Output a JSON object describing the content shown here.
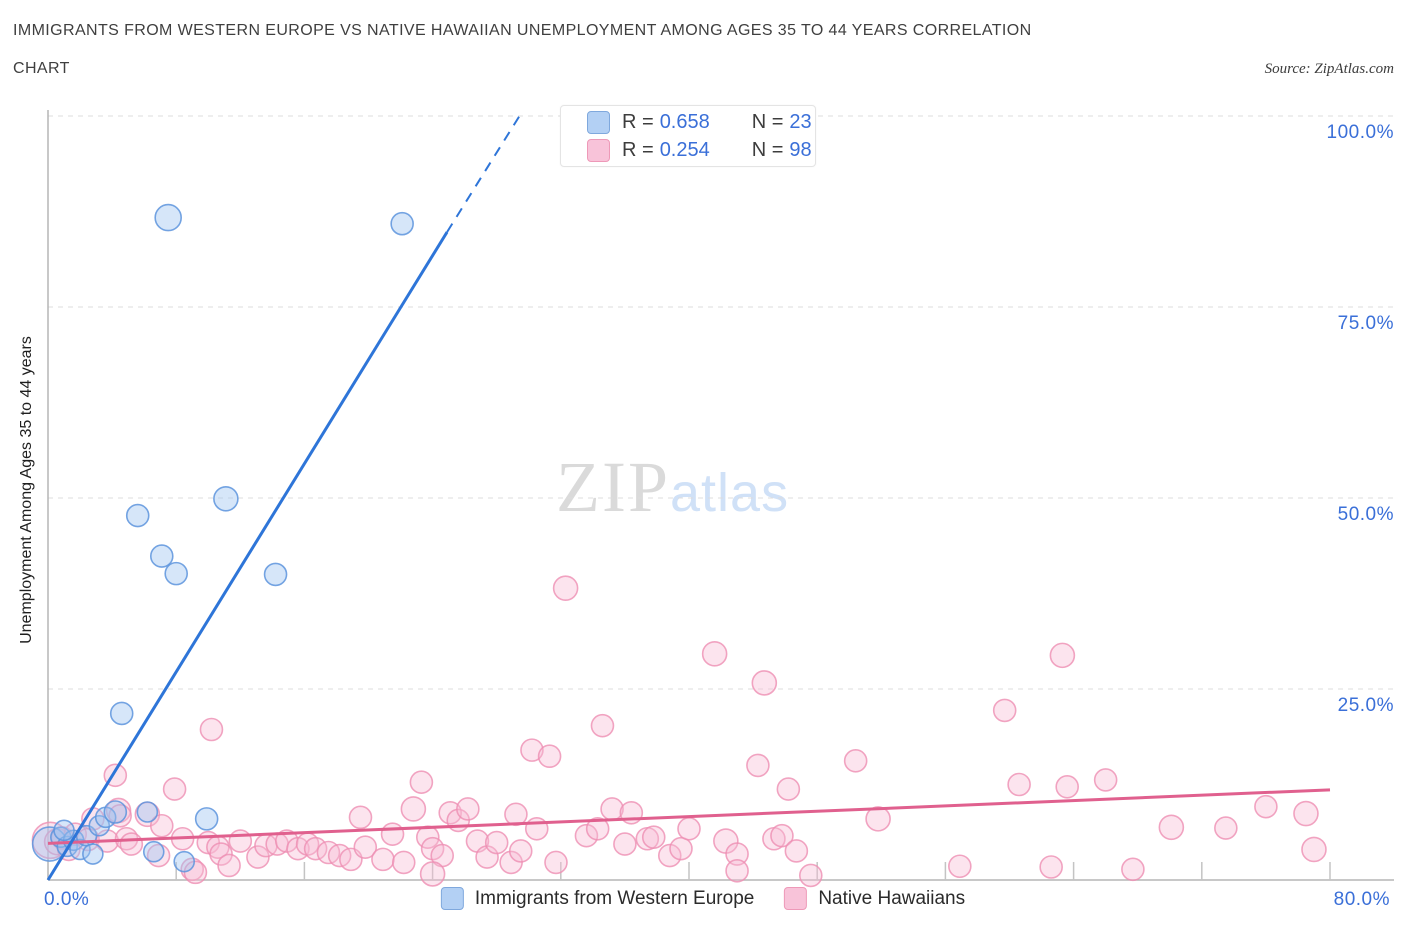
{
  "header": {
    "title_line1": "IMMIGRANTS FROM WESTERN EUROPE VS NATIVE HAWAIIAN UNEMPLOYMENT AMONG AGES 35 TO 44 YEARS CORRELATION",
    "title_line2": "CHART",
    "source": "Source: ZipAtlas.com"
  },
  "watermark": {
    "part1": "ZIP",
    "part2": "atlas"
  },
  "stats_box": {
    "rows": [
      {
        "r_label": "R =",
        "r_value": "0.658",
        "n_label": "N =",
        "n_value": "23"
      },
      {
        "r_label": "R =",
        "r_value": "0.254",
        "n_label": "N =",
        "n_value": "98"
      }
    ]
  },
  "axes": {
    "ylabel": "Unemployment Among Ages 35 to 44 years",
    "y_tick_labels": [
      "100.0%",
      "75.0%",
      "50.0%",
      "25.0%"
    ],
    "x_tick_labels": [
      "0.0%",
      "80.0%"
    ]
  },
  "legend": {
    "items": [
      {
        "label": "Immigrants from Western Europe",
        "color": "#b3d0f4"
      },
      {
        "label": "Native Hawaiians",
        "color": "#f8c3d9"
      }
    ]
  },
  "colors": {
    "accent_blue": "#3a6fd8",
    "blue_point_fill": "#9ec3f1",
    "blue_point_stroke": "#5d94dd",
    "blue_trend": "#2e75d8",
    "pink_point_fill": "#f7bcd4",
    "pink_point_stroke": "#ee8fb3",
    "pink_trend": "#e0608e"
  },
  "chart_data": {
    "type": "scatter",
    "title": "Immigrants from Western Europe vs Native Hawaiian Unemployment Among Ages 35 to 44 years Correlation",
    "xlabel": "Immigrants from Western Europe (%)",
    "ylabel": "Unemployment Among Ages 35 to 44 years (%)",
    "xlim": [
      0,
      80
    ],
    "ylim": [
      0,
      100
    ],
    "grid": "horizontal dashed at 25/50/75/100",
    "legend_position": "bottom-center",
    "x_ticks_pct": [
      8,
      16,
      24,
      32,
      40,
      48,
      56,
      64,
      72,
      80
    ],
    "y_grid_pct": [
      25,
      50,
      75,
      100
    ],
    "series": [
      {
        "name": "Immigrants from Western Europe",
        "R": 0.658,
        "N": 23,
        "trend": {
          "solid": [
            [
              0,
              0
            ],
            [
              24.9,
              84.8
            ]
          ],
          "dashed": [
            [
              24.9,
              84.8
            ],
            [
              29.6,
              100.6
            ]
          ]
        },
        "points": [
          [
            0.1,
            4.7,
            17
          ],
          [
            0.8,
            5.6,
            10
          ],
          [
            1.2,
            4.4,
            10
          ],
          [
            1.6,
            5.2,
            10
          ],
          [
            2.0,
            4.0,
            10
          ],
          [
            2.4,
            5.8,
            10
          ],
          [
            2.8,
            3.4,
            10
          ],
          [
            1.0,
            6.5,
            10
          ],
          [
            3.2,
            7.1,
            10
          ],
          [
            3.6,
            8.2,
            10
          ],
          [
            4.2,
            8.9,
            11
          ],
          [
            4.6,
            21.8,
            11
          ],
          [
            5.6,
            47.7,
            11
          ],
          [
            6.2,
            8.9,
            10
          ],
          [
            6.6,
            3.7,
            10
          ],
          [
            7.1,
            42.4,
            11
          ],
          [
            7.5,
            86.7,
            13
          ],
          [
            8.0,
            40.1,
            11
          ],
          [
            8.5,
            2.4,
            10
          ],
          [
            9.9,
            8.0,
            11
          ],
          [
            11.1,
            49.9,
            12
          ],
          [
            14.2,
            40.0,
            11
          ],
          [
            22.1,
            85.9,
            11
          ]
        ]
      },
      {
        "name": "Native Hawaiians",
        "R": 0.254,
        "N": 98,
        "trend": {
          "solid": [
            [
              0,
              4.8
            ],
            [
              80,
              11.8
            ]
          ]
        },
        "points": [
          [
            0.15,
            5.2,
            18
          ],
          [
            0.6,
            5.0,
            13
          ],
          [
            0.9,
            5.5,
            11
          ],
          [
            1.3,
            4.0,
            11
          ],
          [
            1.7,
            6.0,
            11
          ],
          [
            56.9,
            1.8,
            11
          ],
          [
            2.5,
            5.3,
            11
          ],
          [
            2.8,
            8.0,
            11
          ],
          [
            3.7,
            5.1,
            11
          ],
          [
            4.2,
            13.7,
            11
          ],
          [
            4.4,
            9.1,
            12
          ],
          [
            4.5,
            8.4,
            11
          ],
          [
            4.9,
            5.4,
            11
          ],
          [
            5.2,
            4.7,
            11
          ],
          [
            6.2,
            8.6,
            12
          ],
          [
            6.9,
            3.2,
            11
          ],
          [
            7.1,
            7.1,
            11
          ],
          [
            7.9,
            11.9,
            11
          ],
          [
            8.4,
            5.4,
            11
          ],
          [
            9.0,
            1.4,
            11
          ],
          [
            9.2,
            1.0,
            11
          ],
          [
            10.0,
            4.9,
            11
          ],
          [
            10.2,
            19.7,
            11
          ],
          [
            10.6,
            4.3,
            11
          ],
          [
            10.8,
            3.4,
            11
          ],
          [
            11.3,
            1.9,
            11
          ],
          [
            12.0,
            5.1,
            11
          ],
          [
            13.1,
            3.0,
            11
          ],
          [
            13.6,
            4.5,
            11
          ],
          [
            14.3,
            4.7,
            11
          ],
          [
            14.9,
            5.1,
            11
          ],
          [
            15.6,
            4.1,
            11
          ],
          [
            16.2,
            4.7,
            11
          ],
          [
            16.7,
            4.1,
            11
          ],
          [
            17.5,
            3.6,
            11
          ],
          [
            18.2,
            3.2,
            11
          ],
          [
            18.9,
            2.7,
            11
          ],
          [
            19.5,
            8.2,
            11
          ],
          [
            19.8,
            4.3,
            11
          ],
          [
            20.9,
            2.7,
            11
          ],
          [
            21.5,
            6.0,
            11
          ],
          [
            22.2,
            2.3,
            11
          ],
          [
            22.8,
            9.3,
            12
          ],
          [
            23.3,
            12.8,
            11
          ],
          [
            23.7,
            5.6,
            11
          ],
          [
            24.0,
            4.1,
            11
          ],
          [
            24.6,
            3.2,
            11
          ],
          [
            24.0,
            0.8,
            12
          ],
          [
            25.1,
            8.8,
            11
          ],
          [
            25.6,
            7.8,
            11
          ],
          [
            26.2,
            9.3,
            11
          ],
          [
            26.8,
            5.1,
            11
          ],
          [
            27.4,
            3.0,
            11
          ],
          [
            28.0,
            4.9,
            11
          ],
          [
            28.9,
            2.3,
            11
          ],
          [
            29.2,
            8.6,
            11
          ],
          [
            29.5,
            3.8,
            11
          ],
          [
            30.2,
            17.0,
            11
          ],
          [
            30.5,
            6.7,
            11
          ],
          [
            31.3,
            16.2,
            11
          ],
          [
            31.7,
            2.3,
            11
          ],
          [
            32.3,
            38.2,
            12
          ],
          [
            33.6,
            5.8,
            11
          ],
          [
            34.3,
            6.7,
            11
          ],
          [
            34.6,
            20.2,
            11
          ],
          [
            35.2,
            9.3,
            11
          ],
          [
            36.0,
            4.7,
            11
          ],
          [
            36.4,
            8.8,
            11
          ],
          [
            37.4,
            5.4,
            11
          ],
          [
            37.8,
            5.6,
            11
          ],
          [
            38.8,
            3.2,
            11
          ],
          [
            39.5,
            4.1,
            11
          ],
          [
            40.0,
            6.7,
            11
          ],
          [
            41.6,
            29.6,
            12
          ],
          [
            42.3,
            5.1,
            12
          ],
          [
            43.0,
            3.4,
            11
          ],
          [
            43.0,
            1.2,
            11
          ],
          [
            44.3,
            15.0,
            11
          ],
          [
            44.7,
            25.8,
            12
          ],
          [
            45.3,
            5.4,
            11
          ],
          [
            45.8,
            5.8,
            11
          ],
          [
            46.2,
            11.9,
            11
          ],
          [
            46.7,
            3.8,
            11
          ],
          [
            47.6,
            0.6,
            11
          ],
          [
            50.4,
            15.6,
            11
          ],
          [
            51.8,
            8.0,
            12
          ],
          [
            59.7,
            22.2,
            11
          ],
          [
            60.6,
            12.5,
            11
          ],
          [
            62.6,
            1.7,
            11
          ],
          [
            63.3,
            29.4,
            12
          ],
          [
            63.6,
            12.2,
            11
          ],
          [
            66.0,
            13.1,
            11
          ],
          [
            67.7,
            1.4,
            11
          ],
          [
            70.1,
            6.9,
            12
          ],
          [
            73.5,
            6.8,
            11
          ],
          [
            76.0,
            9.6,
            11
          ],
          [
            78.5,
            8.7,
            12
          ],
          [
            79.0,
            4.0,
            12
          ]
        ]
      }
    ]
  }
}
